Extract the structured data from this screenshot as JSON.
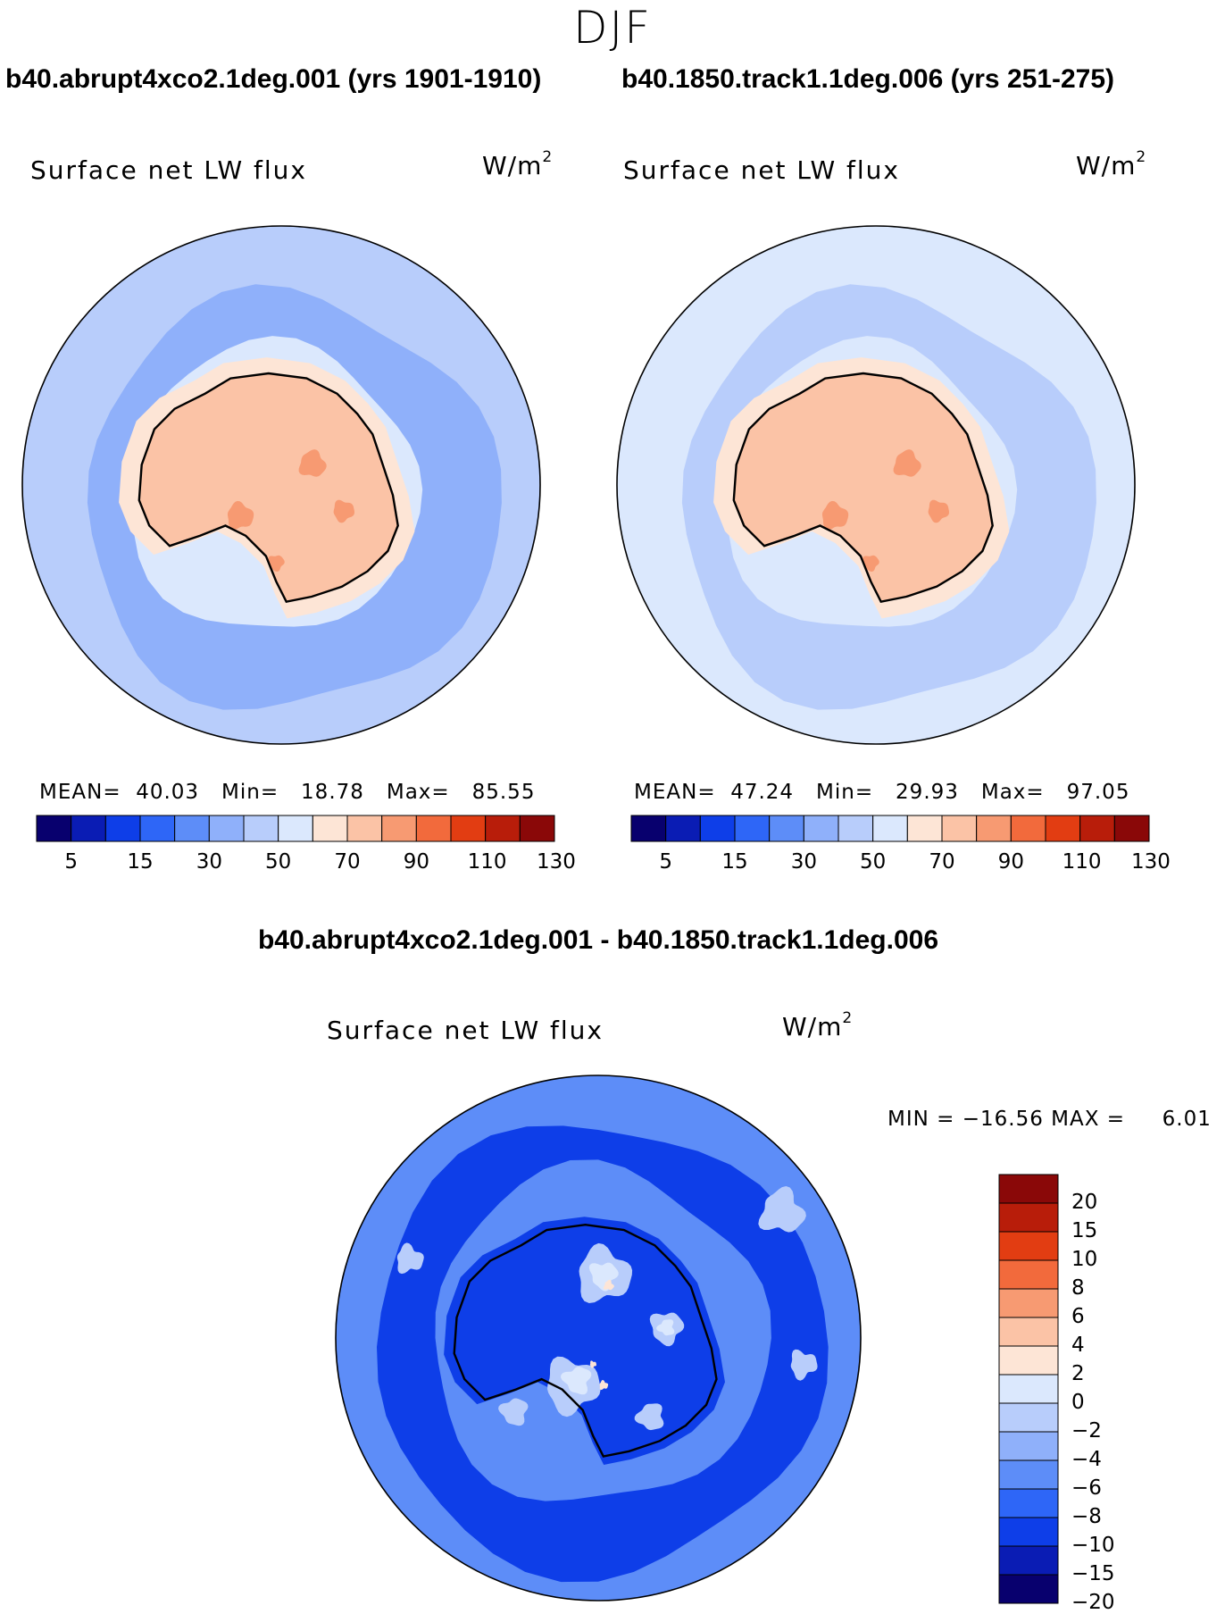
{
  "header": {
    "season": "DJF",
    "left_run_title": "b40.abrupt4xco2.1deg.001 (yrs 1901-1910)",
    "right_run_title": "b40.1850.track1.1deg.006 (yrs 251-275)",
    "diff_title": "b40.abrupt4xco2.1deg.001 - b40.1850.track1.1deg.006"
  },
  "colors": {
    "abs_scale": [
      "#08006e",
      "#0a1cb4",
      "#0e3ee8",
      "#2e66f7",
      "#5d8df8",
      "#8fb0fa",
      "#b8cdfb",
      "#dbe8fd",
      "#fde5d6",
      "#fbc3a6",
      "#f79a72",
      "#f26a3c",
      "#e23d12",
      "#b81d0a",
      "#8a0808"
    ],
    "diff_scale": [
      "#08006e",
      "#0a1cb4",
      "#0e3ee8",
      "#2e66f7",
      "#5d8df8",
      "#8fb0fa",
      "#b8cdfb",
      "#dbe8fd",
      "#fde5d6",
      "#fbc3a6",
      "#f79a72",
      "#f26a3c",
      "#e23d12",
      "#b81d0a",
      "#8a0808"
    ]
  },
  "chart_data": [
    {
      "type": "heatmap",
      "projection": "south polar stereographic",
      "title": "b40.abrupt4xco2.1deg.001 (yrs 1901-1910)",
      "variable": "Surface net LW flux",
      "units_base": "W/m",
      "units_exp": "2",
      "stats": {
        "mean_label": "MEAN=",
        "mean": "40.03",
        "min_label": "Min=",
        "min": "18.78",
        "max_label": "Max=",
        "max": "85.55"
      },
      "colorbar": {
        "orientation": "horizontal",
        "levels": [
          5,
          10,
          15,
          20,
          25,
          30,
          40,
          50,
          60,
          70,
          80,
          90,
          100,
          110,
          120,
          130
        ],
        "tick_labels": [
          "5",
          "15",
          "30",
          "50",
          "70",
          "90",
          "110",
          "130"
        ]
      },
      "regions": {
        "outer_ocean": 35,
        "belt_ocean": 25,
        "coastal_ocean": 45,
        "ice_margin": 55,
        "interior": 65,
        "warm_spots": 75
      }
    },
    {
      "type": "heatmap",
      "projection": "south polar stereographic",
      "title": "b40.1850.track1.1deg.006 (yrs 251-275)",
      "variable": "Surface net LW flux",
      "units_base": "W/m",
      "units_exp": "2",
      "stats": {
        "mean_label": "MEAN=",
        "mean": "47.24",
        "min_label": "Min=",
        "min": "29.93",
        "max_label": "Max=",
        "max": "97.05"
      },
      "colorbar": {
        "orientation": "horizontal",
        "levels": [
          5,
          10,
          15,
          20,
          25,
          30,
          40,
          50,
          60,
          70,
          80,
          90,
          100,
          110,
          120,
          130
        ],
        "tick_labels": [
          "5",
          "15",
          "30",
          "50",
          "70",
          "90",
          "110",
          "130"
        ]
      },
      "regions": {
        "outer_ocean": 40,
        "belt_ocean": 35,
        "coastal_ocean": 45,
        "ice_margin": 55,
        "interior": 65,
        "warm_spots": 75
      }
    },
    {
      "type": "heatmap",
      "projection": "south polar stereographic",
      "title": "b40.abrupt4xco2.1deg.001 - b40.1850.track1.1deg.006",
      "variable": "Surface net LW flux",
      "units_base": "W/m",
      "units_exp": "2",
      "stats": {
        "text": "MIN = −16.56 MAX =     6.01"
      },
      "colorbar": {
        "orientation": "vertical",
        "levels": [
          -20,
          -15,
          -10,
          -8,
          -6,
          -4,
          -2,
          0,
          2,
          4,
          6,
          8,
          10,
          15,
          20
        ],
        "tick_labels": [
          "20",
          "15",
          "10",
          "8",
          "6",
          "4",
          "2",
          "0",
          "−2",
          "−4",
          "−6",
          "−8",
          "−10",
          "−15",
          "−20"
        ]
      },
      "regions": {
        "background": -7,
        "deep_ring": -12,
        "inner_sea": -13,
        "light_patches": -3,
        "interior_light": -1,
        "warm_spots": 1
      }
    }
  ]
}
